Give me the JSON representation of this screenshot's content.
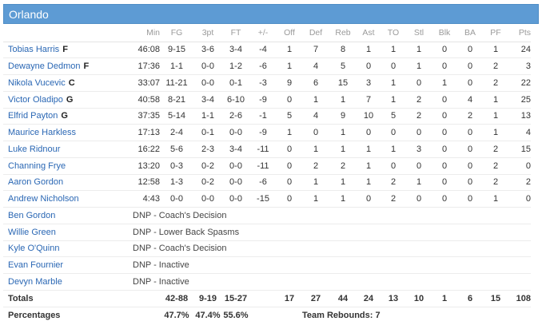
{
  "team": {
    "name": "Orlando"
  },
  "columns": [
    "Min",
    "FG",
    "3pt",
    "FT",
    "+/-",
    "Off",
    "Def",
    "Reb",
    "Ast",
    "TO",
    "Stl",
    "Blk",
    "BA",
    "PF",
    "Pts"
  ],
  "players": [
    {
      "name": "Tobias Harris",
      "pos": "F",
      "stats": [
        "46:08",
        "9-15",
        "3-6",
        "3-4",
        "-4",
        "1",
        "7",
        "8",
        "1",
        "1",
        "1",
        "0",
        "0",
        "1",
        "24"
      ]
    },
    {
      "name": "Dewayne Dedmon",
      "pos": "F",
      "stats": [
        "17:36",
        "1-1",
        "0-0",
        "1-2",
        "-6",
        "1",
        "4",
        "5",
        "0",
        "0",
        "1",
        "0",
        "0",
        "2",
        "3"
      ]
    },
    {
      "name": "Nikola Vucevic",
      "pos": "C",
      "stats": [
        "33:07",
        "11-21",
        "0-0",
        "0-1",
        "-3",
        "9",
        "6",
        "15",
        "3",
        "1",
        "0",
        "1",
        "0",
        "2",
        "22"
      ]
    },
    {
      "name": "Victor Oladipo",
      "pos": "G",
      "stats": [
        "40:58",
        "8-21",
        "3-4",
        "6-10",
        "-9",
        "0",
        "1",
        "1",
        "7",
        "1",
        "2",
        "0",
        "4",
        "1",
        "25"
      ]
    },
    {
      "name": "Elfrid Payton",
      "pos": "G",
      "stats": [
        "37:35",
        "5-14",
        "1-1",
        "2-6",
        "-1",
        "5",
        "4",
        "9",
        "10",
        "5",
        "2",
        "0",
        "2",
        "1",
        "13"
      ]
    },
    {
      "name": "Maurice Harkless",
      "pos": "",
      "stats": [
        "17:13",
        "2-4",
        "0-1",
        "0-0",
        "-9",
        "1",
        "0",
        "1",
        "0",
        "0",
        "0",
        "0",
        "0",
        "1",
        "4"
      ]
    },
    {
      "name": "Luke Ridnour",
      "pos": "",
      "stats": [
        "16:22",
        "5-6",
        "2-3",
        "3-4",
        "-11",
        "0",
        "1",
        "1",
        "1",
        "1",
        "3",
        "0",
        "0",
        "2",
        "15"
      ]
    },
    {
      "name": "Channing Frye",
      "pos": "",
      "stats": [
        "13:20",
        "0-3",
        "0-2",
        "0-0",
        "-11",
        "0",
        "2",
        "2",
        "1",
        "0",
        "0",
        "0",
        "0",
        "2",
        "0"
      ]
    },
    {
      "name": "Aaron Gordon",
      "pos": "",
      "stats": [
        "12:58",
        "1-3",
        "0-2",
        "0-0",
        "-6",
        "0",
        "1",
        "1",
        "1",
        "2",
        "1",
        "0",
        "0",
        "2",
        "2"
      ]
    },
    {
      "name": "Andrew Nicholson",
      "pos": "",
      "stats": [
        "4:43",
        "0-0",
        "0-0",
        "0-0",
        "-15",
        "0",
        "1",
        "1",
        "0",
        "2",
        "0",
        "0",
        "0",
        "1",
        "0"
      ]
    }
  ],
  "dnp": [
    {
      "name": "Ben Gordon",
      "reason": "DNP - Coach's Decision"
    },
    {
      "name": "Willie Green",
      "reason": "DNP - Lower Back Spasms"
    },
    {
      "name": "Kyle O'Quinn",
      "reason": "DNP - Coach's Decision"
    },
    {
      "name": "Evan Fournier",
      "reason": "DNP - Inactive"
    },
    {
      "name": "Devyn Marble",
      "reason": "DNP - Inactive"
    }
  ],
  "totals": {
    "label": "Totals",
    "stats": [
      "",
      "42-88",
      "9-19",
      "15-27",
      "",
      "17",
      "27",
      "44",
      "24",
      "13",
      "10",
      "1",
      "6",
      "15",
      "108"
    ]
  },
  "percentages": {
    "label": "Percentages",
    "fg": "47.7%",
    "three": "47.4%",
    "ft": "55.6%",
    "team_rebounds": "Team Rebounds: 7"
  }
}
